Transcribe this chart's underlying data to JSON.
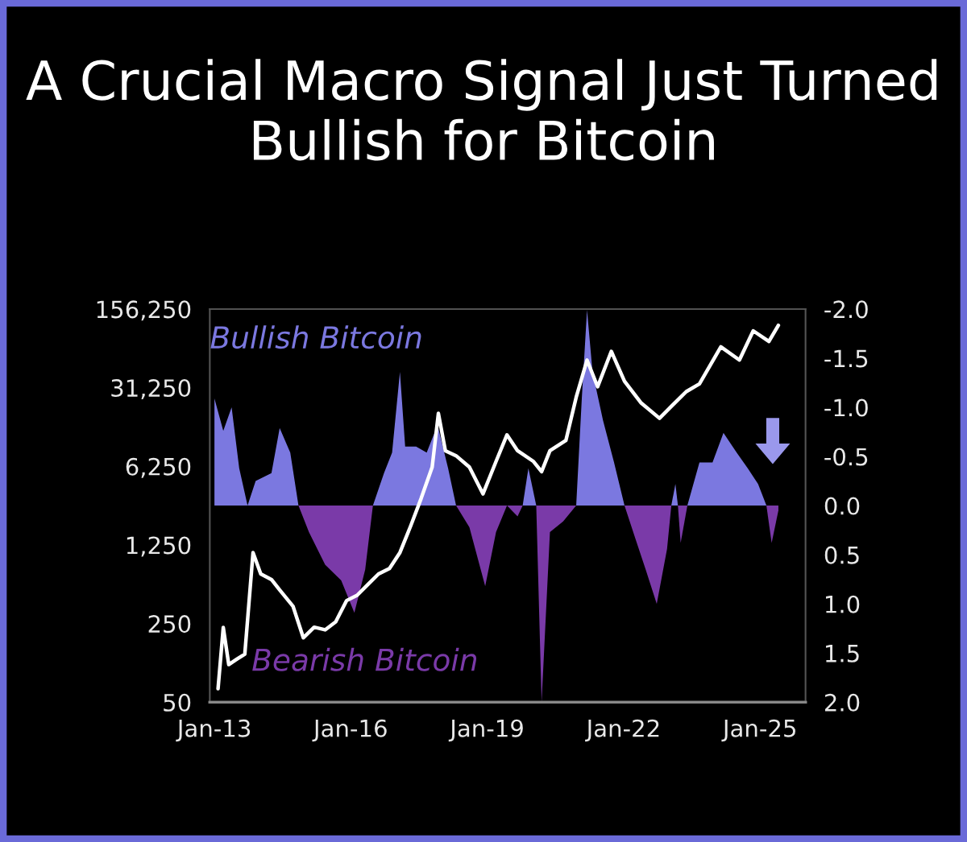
{
  "chart_data": {
    "type": "line",
    "title": "A Crucial Macro Signal Just Turned Bullish for Bitcoin",
    "xlim": [
      "2012-11-25",
      "2026-01-01"
    ],
    "xticks": [
      {
        "value": "2013-01-01",
        "label": "Jan-13"
      },
      {
        "value": "2016-01-01",
        "label": "Jan-16"
      },
      {
        "value": "2019-01-01",
        "label": "Jan-19"
      },
      {
        "value": "2022-01-01",
        "label": "Jan-22"
      },
      {
        "value": "2025-01-01",
        "label": "Jan-25"
      }
    ],
    "log": true,
    "ylim": [
      50,
      156250
    ],
    "yticks": [
      {
        "value": 50,
        "label": "50"
      },
      {
        "value": 250,
        "label": "250"
      },
      {
        "value": 1250,
        "label": "1,250"
      },
      {
        "value": 6250,
        "label": "6,250"
      },
      {
        "value": 31250,
        "label": "31,250"
      },
      {
        "value": 156250,
        "label": "156,250"
      }
    ],
    "y2lim": [
      2.0,
      -2.0
    ],
    "y2ticks": [
      {
        "value": -2.0,
        "label": "-2.0"
      },
      {
        "value": -1.5,
        "label": "-1.5"
      },
      {
        "value": -1.0,
        "label": "-1.0"
      },
      {
        "value": -0.5,
        "label": "-0.5"
      },
      {
        "value": 0.0,
        "label": "0.0"
      },
      {
        "value": 0.5,
        "label": "0.5"
      },
      {
        "value": 1.0,
        "label": "1.0"
      },
      {
        "value": 1.5,
        "label": "1.5"
      },
      {
        "value": 2.0,
        "label": "2.0"
      }
    ],
    "series": [
      {
        "name": "Bullish Bitcoin",
        "type": "area",
        "axis": "y2",
        "color": "#7b78e0",
        "x": [
          "2013-01-01",
          "2013-03-13",
          "2013-05-19",
          "2013-07-19",
          "2013-09-24",
          "2013-11-28",
          "2014-04-04",
          "2014-06-09",
          "2014-09-02",
          "2014-11-07",
          "2015-07-01",
          "2016-06-27",
          "2016-09-24",
          "2016-11-28",
          "2017-01-30",
          "2017-03-13",
          "2017-06-09",
          "2017-09-02",
          "2017-11-28",
          "2018-02-21",
          "2018-04-26",
          "2019-01-01",
          "2019-10-13",
          "2019-11-28",
          "2020-01-30",
          "2020-07-01",
          "2020-12-16",
          "2021-01-30",
          "2021-03-13",
          "2021-04-26",
          "2021-07-19",
          "2021-10-16",
          "2022-01-08",
          "2022-07-01",
          "2023-01-19",
          "2023-02-21",
          "2023-03-13",
          "2023-04-19",
          "2023-05-28",
          "2023-09-02",
          "2023-12-16",
          "2024-03-13",
          "2024-06-27",
          "2024-09-24",
          "2024-12-16",
          "2025-02-21"
        ],
        "values": [
          -1.09,
          -0.76,
          -1.0,
          -0.38,
          0,
          -0.25,
          -0.33,
          -0.79,
          -0.54,
          0,
          null,
          0,
          -0.33,
          -0.54,
          -1.36,
          -0.6,
          -0.6,
          -0.54,
          -0.82,
          -0.38,
          0,
          null,
          0,
          -0.38,
          0,
          null,
          0,
          -1.09,
          -1.99,
          -1.36,
          -0.87,
          -0.44,
          0,
          null,
          0,
          -0.22,
          0,
          null,
          0,
          -0.44,
          -0.44,
          -0.74,
          -0.54,
          -0.38,
          -0.22,
          0
        ]
      },
      {
        "name": "Bearish Bitcoin",
        "type": "area",
        "axis": "y2",
        "color": "#7a3aa8",
        "x": [
          "2014-11-07",
          "2015-01-30",
          "2015-06-09",
          "2015-10-16",
          "2016-01-30",
          "2016-04-26",
          "2016-06-27",
          "2017-07-01",
          "2018-04-26",
          "2018-08-11",
          "2018-12-16",
          "2019-03-13",
          "2019-06-09",
          "2019-09-02",
          "2019-10-13",
          "2019-11-25",
          "2020-01-30",
          "2020-03-13",
          "2020-05-19",
          "2020-09-02",
          "2020-12-16",
          "2021-07-01",
          "2022-01-08",
          "2022-04-04",
          "2022-06-27",
          "2022-09-24",
          "2022-12-16",
          "2023-01-19",
          "2023-02-07",
          "2023-03-13",
          "2023-04-04",
          "2023-05-28",
          "2024-07-01",
          "2025-02-21",
          "2025-04-04",
          "2025-05-28"
        ],
        "values": [
          0,
          0.27,
          0.6,
          0.76,
          1.09,
          0.65,
          0,
          null,
          0,
          0.22,
          0.82,
          0.27,
          0,
          0.11,
          0,
          null,
          0,
          2.0,
          0.27,
          0.16,
          0,
          null,
          0,
          0.33,
          0.65,
          1.0,
          0.44,
          0,
          null,
          0,
          0.38,
          0,
          null,
          0,
          0.38,
          0.05
        ]
      },
      {
        "axis": "y",
        "color": "#ffffff",
        "x": [
          "2013-01-30",
          "2013-03-13",
          "2013-04-26",
          "2013-06-27",
          "2013-09-02",
          "2013-11-07",
          "2014-01-08",
          "2014-04-04",
          "2014-06-09",
          "2014-09-24",
          "2014-12-16",
          "2015-03-13",
          "2015-06-09",
          "2015-09-02",
          "2015-11-28",
          "2016-02-21",
          "2016-05-19",
          "2016-08-11",
          "2016-11-07",
          "2017-01-30",
          "2017-04-26",
          "2017-07-19",
          "2017-10-16",
          "2017-12-05",
          "2018-01-30",
          "2018-04-26",
          "2018-08-11",
          "2018-11-28",
          "2019-03-13",
          "2019-06-09",
          "2019-09-02",
          "2020-01-08",
          "2020-03-13",
          "2020-05-19",
          "2020-09-24",
          "2020-12-16",
          "2021-03-13",
          "2021-06-06",
          "2021-09-24",
          "2022-01-08",
          "2022-05-19",
          "2022-10-16",
          "2023-01-30",
          "2023-05-19",
          "2023-09-02",
          "2024-02-21",
          "2024-07-19",
          "2024-11-07",
          "2025-03-13",
          "2025-05-28"
        ],
        "values": [
          66,
          231,
          108,
          120,
          134,
          1070,
          690,
          616,
          497,
          357,
          187,
          232,
          220,
          259,
          400,
          446,
          559,
          690,
          772,
          1070,
          1840,
          3230,
          6150,
          18460,
          8600,
          7760,
          6150,
          3550,
          6900,
          11900,
          8600,
          6900,
          5600,
          8600,
          10600,
          25700,
          55000,
          31800,
          65700,
          35600,
          23000,
          16700,
          21900,
          28800,
          33800,
          72000,
          55000,
          100000,
          80500,
          112000
        ]
      }
    ]
  }
}
